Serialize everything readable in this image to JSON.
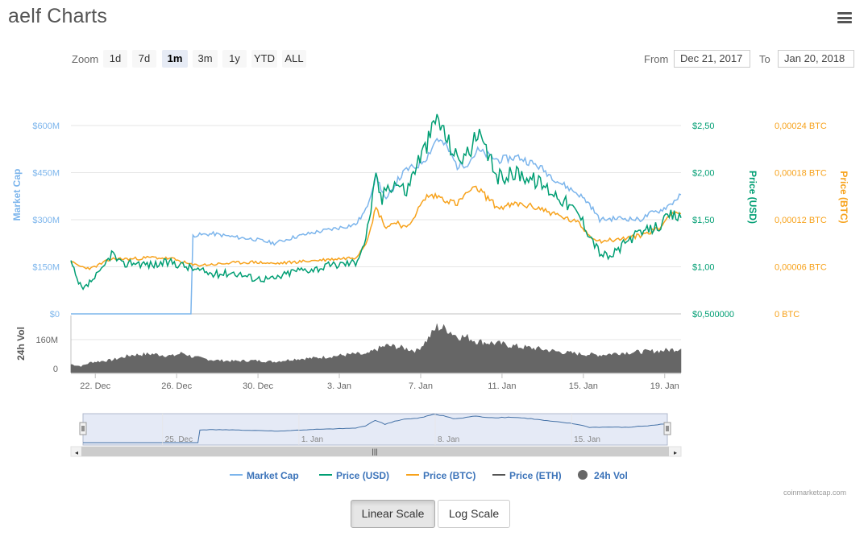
{
  "title": "aelf Charts",
  "menu_icon": "hamburger-menu-icon",
  "zoom": {
    "label": "Zoom",
    "buttons": [
      "1d",
      "7d",
      "1m",
      "3m",
      "1y",
      "YTD",
      "ALL"
    ],
    "selected": "1m"
  },
  "range": {
    "from_label": "From",
    "from_value": "Dec 21, 2017",
    "to_label": "To",
    "to_value": "Jan 20, 2018"
  },
  "credits": "coinmarketcap.com",
  "scale_buttons": {
    "linear": "Linear Scale",
    "log": "Log Scale",
    "active": "linear"
  },
  "colors": {
    "market_cap": "#7cb5ec",
    "price_usd": "#009e73",
    "price_btc": "#f7a21b",
    "price_eth": "#555555",
    "volume": "#666666",
    "navigator_fill": "#d3dcf0",
    "navigator_line": "#4572a7"
  },
  "chart_data": {
    "type": "line",
    "x_start": "2017-12-21",
    "x_end": "2018-01-20",
    "x_ticks": [
      "22. Dec",
      "26. Dec",
      "30. Dec",
      "3. Jan",
      "7. Jan",
      "11. Jan",
      "15. Jan",
      "19. Jan"
    ],
    "y_axes": {
      "market_cap": {
        "title": "Market Cap",
        "ticks": [
          "$0",
          "$150M",
          "$300M",
          "$450M",
          "$600M"
        ]
      },
      "price_usd": {
        "title": "Price (USD)",
        "ticks": [
          "$0,500000",
          "$1,00",
          "$1,50",
          "$2,00",
          "$2,50"
        ]
      },
      "price_btc": {
        "title": "Price (BTC)",
        "ticks": [
          "0 BTC",
          "0,00006 BTC",
          "0,00012 BTC",
          "0,00018 BTC",
          "0,00024 BTC"
        ]
      },
      "volume": {
        "title": "24h Vol",
        "ticks": [
          "0",
          "160M"
        ]
      }
    },
    "series": [
      {
        "name": "Market Cap",
        "axis": "market_cap",
        "x": [
          21.0,
          22.0,
          23.0,
          24.0,
          25.0,
          26.0,
          26.9,
          27.0,
          28.0,
          29.0,
          30.0,
          31.0,
          32.0,
          33.0,
          34.0,
          35.0,
          35.5,
          36.0,
          36.5,
          37.0,
          37.5,
          38.0,
          38.5,
          39.0,
          39.5,
          40.0,
          40.5,
          41.0,
          42.0,
          43.0,
          44.0,
          45.0,
          46.0,
          46.5,
          47.0,
          48.0,
          49.0,
          49.5,
          50.0,
          50.5,
          51.0
        ],
        "y": [
          0,
          0,
          0,
          0,
          0,
          0,
          0,
          250,
          255,
          245,
          238,
          225,
          245,
          260,
          272,
          285,
          330,
          440,
          360,
          420,
          460,
          470,
          500,
          560,
          530,
          470,
          480,
          520,
          490,
          500,
          470,
          420,
          380,
          350,
          300,
          305,
          300,
          320,
          330,
          350,
          380
        ]
      },
      {
        "name": "Price (USD)",
        "axis": "price_usd",
        "x": [
          21.0,
          21.3,
          21.6,
          22.0,
          22.5,
          23.0,
          23.5,
          24.0,
          25.0,
          26.0,
          27.0,
          28.0,
          29.0,
          30.0,
          31.0,
          32.0,
          33.0,
          34.0,
          35.0,
          35.5,
          36.0,
          36.3,
          36.5,
          37.0,
          37.5,
          38.0,
          38.5,
          39.0,
          39.5,
          40.0,
          40.5,
          41.0,
          42.0,
          43.0,
          44.0,
          45.0,
          46.0,
          46.5,
          47.0,
          47.5,
          48.0,
          48.5,
          49.0,
          49.5,
          50.0,
          50.5,
          51.0
        ],
        "y": [
          1.05,
          0.85,
          0.75,
          0.85,
          0.95,
          1.15,
          1.02,
          1.05,
          1.02,
          1.05,
          0.98,
          0.92,
          0.94,
          0.88,
          0.87,
          0.96,
          0.98,
          1.02,
          1.05,
          1.3,
          1.95,
          1.7,
          1.85,
          1.9,
          1.8,
          2.1,
          2.3,
          2.6,
          2.35,
          2.15,
          2.2,
          2.4,
          1.95,
          2.0,
          1.9,
          1.75,
          1.55,
          1.35,
          1.15,
          1.1,
          1.2,
          1.3,
          1.35,
          1.4,
          1.45,
          1.55,
          1.52
        ]
      },
      {
        "name": "Price (BTC)",
        "axis": "price_btc",
        "x": [
          21.0,
          21.5,
          22.0,
          23.0,
          24.0,
          25.0,
          26.0,
          27.0,
          28.0,
          29.0,
          30.0,
          31.0,
          32.0,
          33.0,
          34.0,
          35.0,
          35.5,
          36.0,
          36.5,
          37.0,
          37.5,
          38.0,
          38.5,
          39.0,
          40.0,
          40.5,
          41.0,
          42.0,
          43.0,
          44.0,
          45.0,
          46.0,
          46.5,
          47.0,
          48.0,
          49.0,
          50.0,
          50.5,
          51.0
        ],
        "y": [
          6.6e-05,
          6e-05,
          5.8e-05,
          7e-05,
          7e-05,
          7.2e-05,
          7e-05,
          6.2e-05,
          6.3e-05,
          6.5e-05,
          6.6e-05,
          6.4e-05,
          6.6e-05,
          6.8e-05,
          7e-05,
          7.2e-05,
          9e-05,
          0.000135,
          0.00011,
          0.000118,
          0.000108,
          0.00013,
          0.00015,
          0.00015,
          0.00014,
          0.000155,
          0.00016,
          0.000135,
          0.00014,
          0.000135,
          0.000125,
          0.000115,
          0.0001,
          9.3e-05,
          9.5e-05,
          0.0001,
          0.00011,
          0.00013,
          0.000128
        ]
      },
      {
        "name": "Price (ETH)",
        "axis": "price_usd",
        "x": [],
        "y": []
      },
      {
        "name": "24h Vol",
        "axis": "volume",
        "x": [
          21.0,
          21.5,
          22.0,
          23.0,
          24.0,
          25.0,
          26.0,
          26.5,
          27.0,
          28.0,
          29.0,
          30.0,
          31.0,
          32.0,
          33.0,
          34.0,
          35.0,
          35.5,
          36.0,
          36.5,
          37.0,
          37.5,
          38.0,
          38.5,
          39.0,
          39.5,
          40.0,
          40.5,
          41.0,
          42.0,
          43.0,
          44.0,
          45.0,
          46.0,
          47.0,
          48.0,
          49.0,
          50.0,
          50.5,
          51.0
        ],
        "y": [
          40,
          30,
          50,
          60,
          85,
          90,
          80,
          95,
          75,
          60,
          55,
          58,
          52,
          65,
          70,
          80,
          90,
          85,
          110,
          130,
          125,
          115,
          105,
          155,
          220,
          210,
          175,
          170,
          150,
          140,
          125,
          115,
          100,
          90,
          85,
          95,
          100,
          105,
          110,
          115
        ]
      }
    ],
    "navigator": {
      "x_ticks": [
        "25. Dec",
        "1. Jan",
        "8. Jan",
        "15. Jan"
      ],
      "series_ref": "Market Cap"
    },
    "legend": {
      "position": "bottom-center",
      "items": [
        {
          "name": "Market Cap",
          "symbol": "line"
        },
        {
          "name": "Price (USD)",
          "symbol": "line"
        },
        {
          "name": "Price (BTC)",
          "symbol": "line"
        },
        {
          "name": "Price (ETH)",
          "symbol": "line"
        },
        {
          "name": "24h Vol",
          "symbol": "circle"
        }
      ]
    },
    "grid": true
  }
}
